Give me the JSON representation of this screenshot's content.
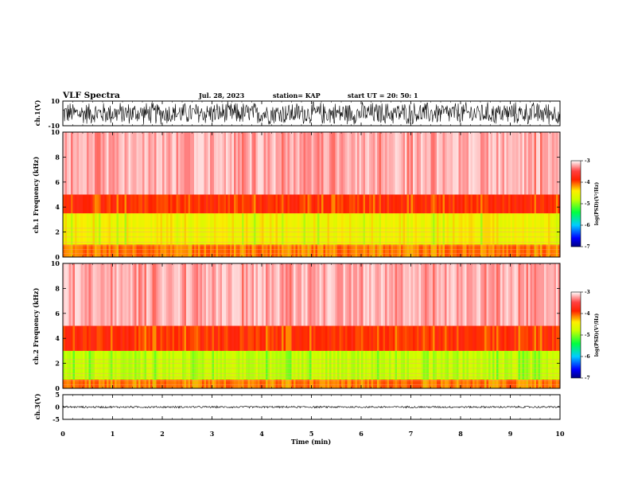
{
  "header": {
    "title": "VLF Spectra",
    "date": "Jul. 28, 2023",
    "station": "station= KAP",
    "start": "start UT =  20: 50: 1"
  },
  "chart_data": [
    {
      "type": "line",
      "panel": "ch1-waveform",
      "ylabel": "ch.1(V)",
      "ylim": [
        -10,
        10
      ],
      "yticks": [
        "10",
        "-10"
      ],
      "xlim": [
        0,
        10
      ],
      "signal": "dense broadband waveform, amplitude near full scale (about ±10 V)"
    },
    {
      "type": "heatmap",
      "panel": "ch1-spectrogram",
      "ylabel": "ch.1 Frequency (kHz)",
      "ylim": [
        0,
        10
      ],
      "yticks": [
        "0",
        "2",
        "4",
        "6",
        "8",
        "10"
      ],
      "xlim": [
        0,
        10
      ],
      "colorbar": {
        "label": "log(PSD)(V²/Hz)",
        "range": [
          -7,
          -3
        ],
        "ticks": [
          "-3",
          "-4",
          "-5",
          "-6",
          "-7"
        ]
      },
      "bands": [
        {
          "from_khz": 0.0,
          "to_khz": 1.0,
          "level": -4.1
        },
        {
          "from_khz": 1.0,
          "to_khz": 3.5,
          "level": -4.5
        },
        {
          "from_khz": 3.5,
          "to_khz": 5.0,
          "level": -3.9
        },
        {
          "from_khz": 5.0,
          "to_khz": 10.0,
          "level": -3.2
        }
      ]
    },
    {
      "type": "heatmap",
      "panel": "ch2-spectrogram",
      "ylabel": "ch.2 Frequency (kHz)",
      "ylim": [
        0,
        10
      ],
      "yticks": [
        "0",
        "2",
        "4",
        "6",
        "8",
        "10"
      ],
      "xlim": [
        0,
        10
      ],
      "colorbar": {
        "label": "log(PSD)(V²/Hz)",
        "range": [
          -7,
          -3
        ],
        "ticks": [
          "-3",
          "-4",
          "-5",
          "-6",
          "-7"
        ]
      },
      "bands": [
        {
          "from_khz": 0.0,
          "to_khz": 0.7,
          "level": -4.1
        },
        {
          "from_khz": 0.7,
          "to_khz": 3.0,
          "level": -4.8
        },
        {
          "from_khz": 3.0,
          "to_khz": 5.0,
          "level": -3.9
        },
        {
          "from_khz": 5.0,
          "to_khz": 10.0,
          "level": -3.2
        }
      ]
    },
    {
      "type": "line",
      "panel": "ch3-waveform",
      "ylabel": "ch.3(V)",
      "ylim": [
        -5,
        5
      ],
      "yticks": [
        "5",
        "0",
        "-5"
      ],
      "xlim": [
        0,
        10
      ],
      "signal": "narrow band around 0 V, about ±0.4 V"
    }
  ],
  "xaxis": {
    "label": "Time (min)",
    "ticks": [
      "0",
      "1",
      "2",
      "3",
      "4",
      "5",
      "6",
      "7",
      "8",
      "9",
      "10"
    ]
  }
}
